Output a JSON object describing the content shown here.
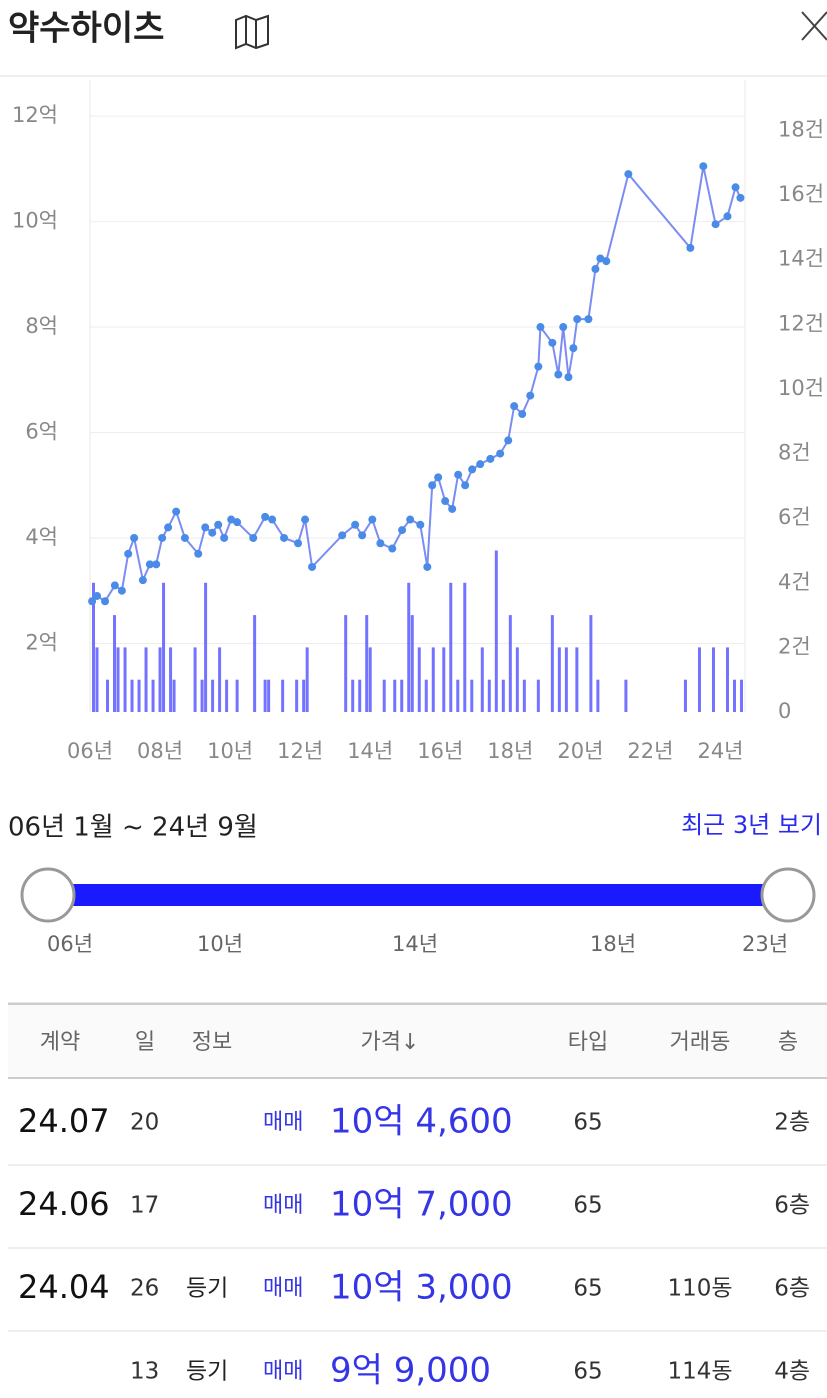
{
  "header": {
    "title": "약수하이츠"
  },
  "chart_data": {
    "type": "line",
    "xlim": [
      6,
      24.7
    ],
    "xticks": [
      {
        "value": 6,
        "label": "06년"
      },
      {
        "value": 8,
        "label": "08년"
      },
      {
        "value": 10,
        "label": "10년"
      },
      {
        "value": 12,
        "label": "12년"
      },
      {
        "value": 14,
        "label": "14년"
      },
      {
        "value": 16,
        "label": "16년"
      },
      {
        "value": 18,
        "label": "18년"
      },
      {
        "value": 20,
        "label": "20년"
      },
      {
        "value": 22,
        "label": "22년"
      },
      {
        "value": 24,
        "label": "24년"
      }
    ],
    "ylim": [
      0.7,
      12.4
    ],
    "yticks": [
      {
        "value": 2,
        "label": "2억"
      },
      {
        "value": 4,
        "label": "4억"
      },
      {
        "value": 6,
        "label": "6억"
      },
      {
        "value": 8,
        "label": "8억"
      },
      {
        "value": 10,
        "label": "10억"
      },
      {
        "value": 12,
        "label": "12억"
      }
    ],
    "y2lim": [
      0,
      19.1
    ],
    "y2ticks": [
      0,
      {
        "value": 2,
        "label": "2건"
      },
      {
        "value": 4,
        "label": "4건"
      },
      {
        "value": 6,
        "label": "6건"
      },
      {
        "value": 8,
        "label": "8건"
      },
      {
        "value": 10,
        "label": "10건"
      },
      {
        "value": 12,
        "label": "12건"
      },
      {
        "value": 14,
        "label": "14건"
      },
      {
        "value": 16,
        "label": "16건"
      },
      {
        "value": 18,
        "label": "18건"
      }
    ],
    "grid": true,
    "series": [
      {
        "type": "bar",
        "axis": "y2",
        "color": "#5b5bff",
        "x": [
          6.1,
          6.2,
          6.5,
          6.7,
          6.8,
          7.0,
          7.2,
          7.4,
          7.6,
          7.8,
          8.0,
          8.1,
          8.3,
          8.4,
          9.0,
          9.2,
          9.3,
          9.5,
          9.7,
          9.9,
          10.2,
          10.7,
          11.0,
          11.1,
          11.5,
          11.9,
          12.1,
          12.2,
          13.3,
          13.5,
          13.7,
          13.9,
          14.0,
          14.4,
          14.7,
          14.9,
          15.1,
          15.2,
          15.4,
          15.6,
          15.8,
          16.1,
          16.3,
          16.5,
          16.7,
          16.9,
          17.2,
          17.4,
          17.6,
          17.8,
          18.0,
          18.2,
          18.4,
          18.8,
          19.2,
          19.4,
          19.6,
          19.9,
          20.3,
          20.5,
          21.3,
          23.0,
          23.4,
          23.8,
          24.2,
          24.4,
          24.6
        ],
        "values": [
          4,
          2,
          1,
          3,
          2,
          2,
          1,
          1,
          2,
          1,
          2,
          4,
          2,
          1,
          2,
          1,
          4,
          1,
          2,
          1,
          1,
          3,
          1,
          1,
          1,
          1,
          1,
          2,
          3,
          1,
          1,
          3,
          2,
          1,
          1,
          1,
          4,
          3,
          2,
          1,
          2,
          2,
          4,
          1,
          4,
          1,
          2,
          1,
          5,
          1,
          3,
          2,
          1,
          1,
          3,
          2,
          2,
          2,
          3,
          1,
          1,
          1,
          2,
          2,
          2,
          1,
          1
        ]
      },
      {
        "type": "line",
        "color": "#7b8df2",
        "point_color": "#4a8be8",
        "x": [
          6.06,
          6.2,
          6.43,
          6.71,
          6.91,
          7.09,
          7.26,
          7.51,
          7.71,
          7.89,
          8.06,
          8.23,
          8.46,
          8.71,
          9.09,
          9.29,
          9.49,
          9.66,
          9.83,
          10.03,
          10.2,
          10.66,
          11.0,
          11.2,
          11.54,
          11.94,
          12.14,
          12.34,
          13.2,
          13.57,
          13.77,
          14.06,
          14.29,
          14.63,
          14.91,
          15.14,
          15.43,
          15.63,
          15.77,
          15.94,
          16.14,
          16.34,
          16.51,
          16.71,
          16.91,
          17.14,
          17.43,
          17.71,
          17.94,
          18.11,
          18.34,
          18.57,
          18.8,
          18.86,
          19.2,
          19.37,
          19.51,
          19.66,
          19.8,
          19.91,
          20.23,
          20.43,
          20.57,
          20.74,
          21.37,
          23.14,
          23.51,
          23.86,
          24.2,
          24.43,
          24.57
        ],
        "values": [
          2.8,
          2.9,
          2.8,
          3.1,
          3.0,
          3.7,
          4.0,
          3.2,
          3.5,
          3.5,
          4.0,
          4.2,
          4.5,
          4.0,
          3.7,
          4.2,
          4.1,
          4.25,
          4.0,
          4.35,
          4.3,
          4.0,
          4.4,
          4.35,
          4.0,
          3.9,
          4.35,
          3.45,
          4.05,
          4.25,
          4.05,
          4.35,
          3.9,
          3.8,
          4.15,
          4.35,
          4.25,
          3.45,
          5.0,
          5.15,
          4.7,
          4.55,
          5.2,
          5.0,
          5.3,
          5.4,
          5.5,
          5.6,
          5.85,
          6.5,
          6.35,
          6.7,
          7.25,
          8.0,
          7.7,
          7.1,
          8.0,
          7.05,
          7.6,
          8.15,
          8.15,
          9.1,
          9.3,
          9.25,
          10.9,
          9.5,
          11.05,
          9.95,
          10.1,
          10.65,
          10.45
        ]
      }
    ]
  },
  "range": {
    "label": "06년 1월 ~ 24년 9월",
    "recent_button": "최근 3년 보기",
    "ticks": [
      "06년",
      "10년",
      "14년",
      "18년",
      "23년"
    ]
  },
  "table": {
    "headers": [
      "계약",
      "일",
      "정보",
      "가격↓",
      "타입",
      "거래동",
      "층"
    ],
    "rows": [
      {
        "date": "24.07",
        "day": "20",
        "trade": "매매",
        "price": "10억 4,600",
        "type": "65",
        "floor": "2층"
      },
      {
        "date": "24.06",
        "day": "17",
        "trade": "매매",
        "price": "10억 7,000",
        "type": "65",
        "floor": "6층"
      },
      {
        "date": "24.04",
        "day": "26",
        "info": "등기",
        "trade": "매매",
        "price": "10억 3,000",
        "type": "65",
        "dong": "110동",
        "floor": "6층"
      },
      {
        "day": "13",
        "info": "등기",
        "trade": "매매",
        "price": "9억 9,000",
        "type": "65",
        "dong": "114동",
        "floor": "4층"
      }
    ]
  }
}
